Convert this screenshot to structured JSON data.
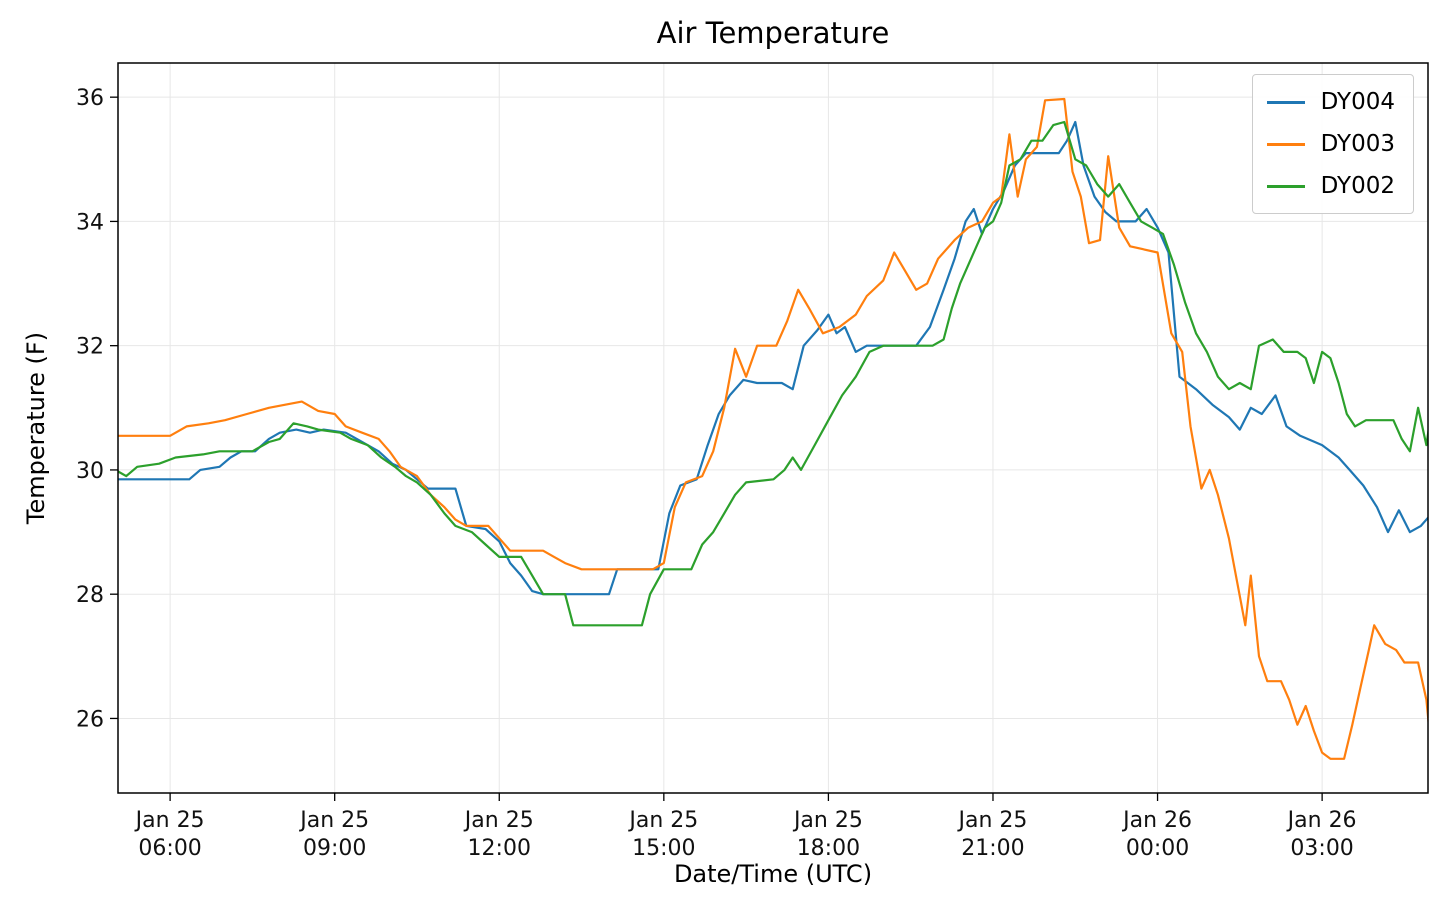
{
  "chart_data": {
    "type": "line",
    "title": "Air Temperature",
    "xlabel": "Date/Time (UTC)",
    "ylabel": "Temperature (F)",
    "x_encoding": "hours since Jan 25 00:00 UTC",
    "xlim": [
      5.05,
      28.93
    ],
    "ylim": [
      24.8,
      36.55
    ],
    "yticks": [
      26,
      28,
      30,
      32,
      34,
      36
    ],
    "xticks": [
      {
        "value": 6,
        "line1": "Jan 25",
        "line2": "06:00"
      },
      {
        "value": 9,
        "line1": "Jan 25",
        "line2": "09:00"
      },
      {
        "value": 12,
        "line1": "Jan 25",
        "line2": "12:00"
      },
      {
        "value": 15,
        "line1": "Jan 25",
        "line2": "15:00"
      },
      {
        "value": 18,
        "line1": "Jan 25",
        "line2": "18:00"
      },
      {
        "value": 21,
        "line1": "Jan 25",
        "line2": "21:00"
      },
      {
        "value": 24,
        "line1": "Jan 26",
        "line2": "00:00"
      },
      {
        "value": 27,
        "line1": "Jan 26",
        "line2": "03:00"
      }
    ],
    "grid": true,
    "grid_color": "#e7e7e7",
    "spine_color": "#000000",
    "legend_position": "upper right",
    "series": [
      {
        "name": "DY004",
        "color": "#1f77b4",
        "points": [
          [
            5.0,
            29.85
          ],
          [
            6.35,
            29.85
          ],
          [
            6.55,
            30.0
          ],
          [
            6.9,
            30.05
          ],
          [
            7.1,
            30.2
          ],
          [
            7.3,
            30.3
          ],
          [
            7.55,
            30.3
          ],
          [
            7.8,
            30.5
          ],
          [
            8.0,
            30.6
          ],
          [
            8.3,
            30.65
          ],
          [
            8.55,
            30.6
          ],
          [
            8.8,
            30.65
          ],
          [
            9.2,
            30.6
          ],
          [
            9.5,
            30.45
          ],
          [
            9.8,
            30.3
          ],
          [
            10.05,
            30.1
          ],
          [
            10.3,
            30.0
          ],
          [
            10.5,
            29.85
          ],
          [
            10.7,
            29.7
          ],
          [
            11.2,
            29.7
          ],
          [
            11.4,
            29.1
          ],
          [
            11.75,
            29.05
          ],
          [
            12.0,
            28.85
          ],
          [
            12.2,
            28.5
          ],
          [
            12.4,
            28.3
          ],
          [
            12.6,
            28.05
          ],
          [
            12.8,
            28.0
          ],
          [
            14.0,
            28.0
          ],
          [
            14.15,
            28.4
          ],
          [
            14.9,
            28.4
          ],
          [
            15.1,
            29.3
          ],
          [
            15.3,
            29.75
          ],
          [
            15.6,
            29.85
          ],
          [
            15.8,
            30.4
          ],
          [
            16.0,
            30.9
          ],
          [
            16.2,
            31.2
          ],
          [
            16.45,
            31.45
          ],
          [
            16.7,
            31.4
          ],
          [
            17.15,
            31.4
          ],
          [
            17.35,
            31.3
          ],
          [
            17.55,
            32.0
          ],
          [
            17.8,
            32.25
          ],
          [
            18.0,
            32.5
          ],
          [
            18.15,
            32.2
          ],
          [
            18.3,
            32.3
          ],
          [
            18.5,
            31.9
          ],
          [
            18.7,
            32.0
          ],
          [
            19.6,
            32.0
          ],
          [
            19.85,
            32.3
          ],
          [
            20.1,
            32.9
          ],
          [
            20.3,
            33.4
          ],
          [
            20.5,
            34.0
          ],
          [
            20.65,
            34.2
          ],
          [
            20.8,
            33.8
          ],
          [
            21.0,
            34.2
          ],
          [
            21.2,
            34.5
          ],
          [
            21.4,
            34.9
          ],
          [
            21.6,
            35.1
          ],
          [
            22.2,
            35.1
          ],
          [
            22.35,
            35.3
          ],
          [
            22.5,
            35.6
          ],
          [
            22.65,
            34.9
          ],
          [
            22.85,
            34.4
          ],
          [
            23.05,
            34.15
          ],
          [
            23.25,
            34.0
          ],
          [
            23.6,
            34.0
          ],
          [
            23.8,
            34.2
          ],
          [
            24.0,
            33.9
          ],
          [
            24.2,
            33.5
          ],
          [
            24.4,
            31.5
          ],
          [
            24.7,
            31.3
          ],
          [
            25.0,
            31.05
          ],
          [
            25.3,
            30.85
          ],
          [
            25.5,
            30.65
          ],
          [
            25.7,
            31.0
          ],
          [
            25.9,
            30.9
          ],
          [
            26.15,
            31.2
          ],
          [
            26.35,
            30.7
          ],
          [
            26.6,
            30.55
          ],
          [
            27.0,
            30.4
          ],
          [
            27.3,
            30.2
          ],
          [
            27.5,
            30.0
          ],
          [
            27.75,
            29.75
          ],
          [
            28.0,
            29.4
          ],
          [
            28.2,
            29.0
          ],
          [
            28.4,
            29.35
          ],
          [
            28.6,
            29.0
          ],
          [
            28.8,
            29.1
          ],
          [
            29.0,
            29.3
          ]
        ]
      },
      {
        "name": "DY003",
        "color": "#ff7f0e",
        "points": [
          [
            5.0,
            30.55
          ],
          [
            6.0,
            30.55
          ],
          [
            6.3,
            30.7
          ],
          [
            6.7,
            30.75
          ],
          [
            7.0,
            30.8
          ],
          [
            7.4,
            30.9
          ],
          [
            7.8,
            31.0
          ],
          [
            8.1,
            31.05
          ],
          [
            8.4,
            31.1
          ],
          [
            8.7,
            30.95
          ],
          [
            9.0,
            30.9
          ],
          [
            9.2,
            30.7
          ],
          [
            9.5,
            30.6
          ],
          [
            9.8,
            30.5
          ],
          [
            10.0,
            30.3
          ],
          [
            10.2,
            30.05
          ],
          [
            10.5,
            29.9
          ],
          [
            10.75,
            29.6
          ],
          [
            11.0,
            29.4
          ],
          [
            11.2,
            29.2
          ],
          [
            11.4,
            29.1
          ],
          [
            11.8,
            29.1
          ],
          [
            12.0,
            28.9
          ],
          [
            12.2,
            28.7
          ],
          [
            12.8,
            28.7
          ],
          [
            13.0,
            28.6
          ],
          [
            13.2,
            28.5
          ],
          [
            13.5,
            28.4
          ],
          [
            14.8,
            28.4
          ],
          [
            15.0,
            28.5
          ],
          [
            15.2,
            29.4
          ],
          [
            15.4,
            29.8
          ],
          [
            15.7,
            29.9
          ],
          [
            15.9,
            30.3
          ],
          [
            16.1,
            31.0
          ],
          [
            16.3,
            31.95
          ],
          [
            16.5,
            31.5
          ],
          [
            16.7,
            32.0
          ],
          [
            17.05,
            32.0
          ],
          [
            17.25,
            32.4
          ],
          [
            17.45,
            32.9
          ],
          [
            17.65,
            32.6
          ],
          [
            17.9,
            32.2
          ],
          [
            18.2,
            32.3
          ],
          [
            18.5,
            32.5
          ],
          [
            18.7,
            32.8
          ],
          [
            19.0,
            33.05
          ],
          [
            19.2,
            33.5
          ],
          [
            19.4,
            33.2
          ],
          [
            19.6,
            32.9
          ],
          [
            19.8,
            33.0
          ],
          [
            20.0,
            33.4
          ],
          [
            20.3,
            33.7
          ],
          [
            20.55,
            33.9
          ],
          [
            20.8,
            34.0
          ],
          [
            21.0,
            34.3
          ],
          [
            21.15,
            34.4
          ],
          [
            21.3,
            35.4
          ],
          [
            21.45,
            34.4
          ],
          [
            21.6,
            35.0
          ],
          [
            21.8,
            35.2
          ],
          [
            21.95,
            35.95
          ],
          [
            22.3,
            35.97
          ],
          [
            22.45,
            34.8
          ],
          [
            22.6,
            34.4
          ],
          [
            22.75,
            33.65
          ],
          [
            22.95,
            33.7
          ],
          [
            23.1,
            35.05
          ],
          [
            23.3,
            33.9
          ],
          [
            23.5,
            33.6
          ],
          [
            24.0,
            33.5
          ],
          [
            24.25,
            32.2
          ],
          [
            24.45,
            31.9
          ],
          [
            24.6,
            30.7
          ],
          [
            24.8,
            29.7
          ],
          [
            24.95,
            30.0
          ],
          [
            25.1,
            29.6
          ],
          [
            25.3,
            28.9
          ],
          [
            25.45,
            28.2
          ],
          [
            25.6,
            27.5
          ],
          [
            25.7,
            28.3
          ],
          [
            25.85,
            27.0
          ],
          [
            26.0,
            26.6
          ],
          [
            26.25,
            26.6
          ],
          [
            26.4,
            26.3
          ],
          [
            26.55,
            25.9
          ],
          [
            26.7,
            26.2
          ],
          [
            26.85,
            25.8
          ],
          [
            27.0,
            25.45
          ],
          [
            27.15,
            25.35
          ],
          [
            27.4,
            25.35
          ],
          [
            27.55,
            25.9
          ],
          [
            27.7,
            26.5
          ],
          [
            27.85,
            27.1
          ],
          [
            27.95,
            27.5
          ],
          [
            28.15,
            27.2
          ],
          [
            28.35,
            27.1
          ],
          [
            28.5,
            26.9
          ],
          [
            28.75,
            26.9
          ],
          [
            28.9,
            26.3
          ],
          [
            29.0,
            25.4
          ]
        ]
      },
      {
        "name": "DY002",
        "color": "#2ca02c",
        "points": [
          [
            5.0,
            30.0
          ],
          [
            5.2,
            29.9
          ],
          [
            5.4,
            30.05
          ],
          [
            5.8,
            30.1
          ],
          [
            6.1,
            30.2
          ],
          [
            6.6,
            30.25
          ],
          [
            6.9,
            30.3
          ],
          [
            7.5,
            30.3
          ],
          [
            7.8,
            30.45
          ],
          [
            8.0,
            30.5
          ],
          [
            8.25,
            30.75
          ],
          [
            8.5,
            30.7
          ],
          [
            8.7,
            30.65
          ],
          [
            9.1,
            30.6
          ],
          [
            9.3,
            30.5
          ],
          [
            9.6,
            30.4
          ],
          [
            9.85,
            30.2
          ],
          [
            10.1,
            30.05
          ],
          [
            10.3,
            29.9
          ],
          [
            10.5,
            29.8
          ],
          [
            10.75,
            29.6
          ],
          [
            11.0,
            29.3
          ],
          [
            11.2,
            29.1
          ],
          [
            11.5,
            29.0
          ],
          [
            11.75,
            28.8
          ],
          [
            12.0,
            28.6
          ],
          [
            12.4,
            28.6
          ],
          [
            12.6,
            28.3
          ],
          [
            12.8,
            28.0
          ],
          [
            13.2,
            28.0
          ],
          [
            13.35,
            27.5
          ],
          [
            14.6,
            27.5
          ],
          [
            14.75,
            28.0
          ],
          [
            15.0,
            28.4
          ],
          [
            15.5,
            28.4
          ],
          [
            15.7,
            28.8
          ],
          [
            15.9,
            29.0
          ],
          [
            16.1,
            29.3
          ],
          [
            16.3,
            29.6
          ],
          [
            16.5,
            29.8
          ],
          [
            17.0,
            29.85
          ],
          [
            17.2,
            30.0
          ],
          [
            17.35,
            30.2
          ],
          [
            17.5,
            30.0
          ],
          [
            17.75,
            30.4
          ],
          [
            18.0,
            30.8
          ],
          [
            18.25,
            31.2
          ],
          [
            18.5,
            31.5
          ],
          [
            18.75,
            31.9
          ],
          [
            19.0,
            32.0
          ],
          [
            19.9,
            32.0
          ],
          [
            20.1,
            32.1
          ],
          [
            20.25,
            32.6
          ],
          [
            20.4,
            33.0
          ],
          [
            20.55,
            33.3
          ],
          [
            20.7,
            33.6
          ],
          [
            20.85,
            33.9
          ],
          [
            21.0,
            34.0
          ],
          [
            21.15,
            34.3
          ],
          [
            21.3,
            34.9
          ],
          [
            21.5,
            35.0
          ],
          [
            21.7,
            35.3
          ],
          [
            21.9,
            35.3
          ],
          [
            22.1,
            35.55
          ],
          [
            22.3,
            35.6
          ],
          [
            22.5,
            35.0
          ],
          [
            22.7,
            34.9
          ],
          [
            22.9,
            34.6
          ],
          [
            23.1,
            34.4
          ],
          [
            23.3,
            34.6
          ],
          [
            23.5,
            34.3
          ],
          [
            23.7,
            34.0
          ],
          [
            23.9,
            33.9
          ],
          [
            24.1,
            33.8
          ],
          [
            24.3,
            33.3
          ],
          [
            24.5,
            32.7
          ],
          [
            24.7,
            32.2
          ],
          [
            24.9,
            31.9
          ],
          [
            25.1,
            31.5
          ],
          [
            25.3,
            31.3
          ],
          [
            25.5,
            31.4
          ],
          [
            25.7,
            31.3
          ],
          [
            25.85,
            32.0
          ],
          [
            26.1,
            32.1
          ],
          [
            26.3,
            31.9
          ],
          [
            26.55,
            31.9
          ],
          [
            26.7,
            31.8
          ],
          [
            26.85,
            31.4
          ],
          [
            27.0,
            31.9
          ],
          [
            27.15,
            31.8
          ],
          [
            27.3,
            31.4
          ],
          [
            27.45,
            30.9
          ],
          [
            27.6,
            30.7
          ],
          [
            27.8,
            30.8
          ],
          [
            28.3,
            30.8
          ],
          [
            28.45,
            30.5
          ],
          [
            28.6,
            30.3
          ],
          [
            28.75,
            31.0
          ],
          [
            28.9,
            30.4
          ],
          [
            29.0,
            31.0
          ]
        ]
      }
    ]
  }
}
